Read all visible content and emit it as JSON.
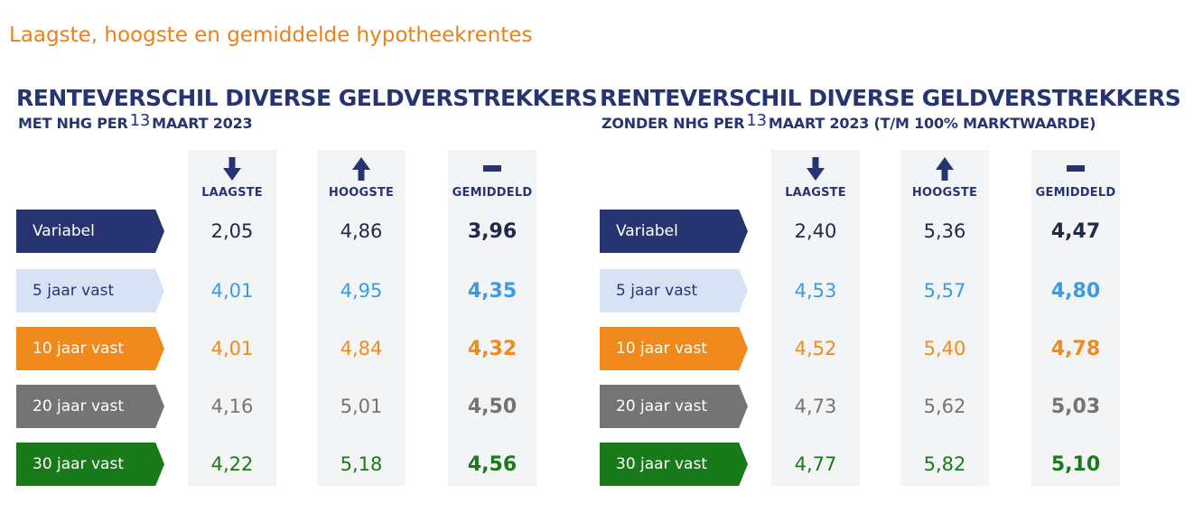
{
  "page_title": "Laagste, hoogste en gemiddelde hypotheekrentes",
  "columns": {
    "low": "LAAGSTE",
    "high": "HOOGSTE",
    "avg": "GEMIDDELD"
  },
  "colors": {
    "navy": "#263572",
    "light_blue": "#d7e3f5",
    "sky": "#3b9be3",
    "orange": "#f08a1c",
    "gray": "#747474",
    "green": "#197a1a",
    "accent_title": "#e8821e"
  },
  "tables": [
    {
      "heading": "RENTEVERSCHIL DIVERSE GELDVERSTREKKERS",
      "sub_before": "MET NHG PER",
      "sub_number": "13",
      "sub_after": "MAART 2023",
      "rows": [
        {
          "label": "Variabel",
          "low": "2,05",
          "high": "4,86",
          "avg": "3,96"
        },
        {
          "label": "5 jaar vast",
          "low": "4,01",
          "high": "4,95",
          "avg": "4,35"
        },
        {
          "label": "10 jaar vast",
          "low": "4,01",
          "high": "4,84",
          "avg": "4,32"
        },
        {
          "label": "20 jaar vast",
          "low": "4,16",
          "high": "5,01",
          "avg": "4,50"
        },
        {
          "label": "30 jaar vast",
          "low": "4,22",
          "high": "5,18",
          "avg": "4,56"
        }
      ]
    },
    {
      "heading": "RENTEVERSCHIL DIVERSE GELDVERSTREKKERS",
      "sub_before": "ZONDER NHG PER",
      "sub_number": "13",
      "sub_after": "MAART 2023 (T/M 100% MARKTWAARDE)",
      "rows": [
        {
          "label": "Variabel",
          "low": "2,40",
          "high": "5,36",
          "avg": "4,47"
        },
        {
          "label": "5 jaar vast",
          "low": "4,53",
          "high": "5,57",
          "avg": "4,80"
        },
        {
          "label": "10 jaar vast",
          "low": "4,52",
          "high": "5,40",
          "avg": "4,78"
        },
        {
          "label": "20 jaar vast",
          "low": "4,73",
          "high": "5,62",
          "avg": "5,03"
        },
        {
          "label": "30 jaar vast",
          "low": "4,77",
          "high": "5,82",
          "avg": "5,10"
        }
      ]
    }
  ]
}
